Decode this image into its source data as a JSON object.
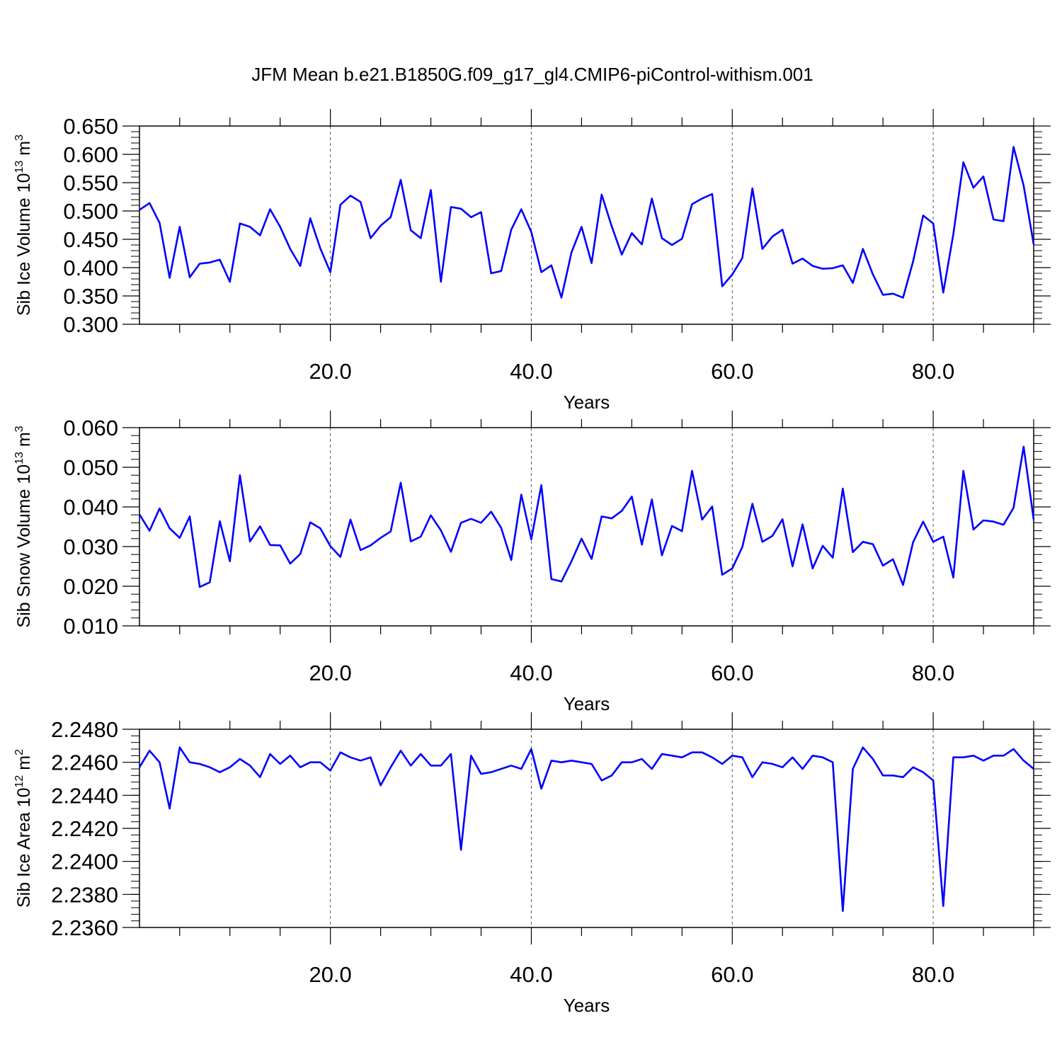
{
  "title": "JFM Mean b.e21.B1850G.f09_g17_gl4.CMIP6-piControl-withism.001",
  "colors": {
    "line": "#0000ff",
    "axis": "#000000",
    "grid": "#555555"
  },
  "chart_data": [
    {
      "type": "line",
      "xlabel": "Years",
      "ylabel": "Sib Ice Volume 10^13 m^3",
      "ylabel_parts": {
        "main": "Sib Ice Volume 10",
        "exp1": "13",
        "unit": " m",
        "exp2": "3"
      },
      "xlim": [
        1,
        90
      ],
      "ylim": [
        0.3,
        0.65
      ],
      "x_ticks": [
        20,
        40,
        60,
        80
      ],
      "x_tick_labels": [
        "20.0",
        "40.0",
        "60.0",
        "80.0"
      ],
      "y_ticks": [
        0.3,
        0.35,
        0.4,
        0.45,
        0.5,
        0.55,
        0.6,
        0.65
      ],
      "y_tick_labels": [
        "0.300",
        "0.350",
        "0.400",
        "0.450",
        "0.500",
        "0.550",
        "0.600",
        "0.650"
      ],
      "y_minor_step": 0.01,
      "grid": "vertical dashed at major x ticks",
      "series": [
        {
          "x_start": 1,
          "x_step": 1,
          "values": [
            0.502,
            0.514,
            0.479,
            0.382,
            0.472,
            0.383,
            0.407,
            0.409,
            0.414,
            0.375,
            0.478,
            0.472,
            0.457,
            0.503,
            0.472,
            0.433,
            0.403,
            0.487,
            0.434,
            0.392,
            0.511,
            0.527,
            0.516,
            0.452,
            0.474,
            0.489,
            0.555,
            0.466,
            0.452,
            0.537,
            0.375,
            0.507,
            0.504,
            0.489,
            0.498,
            0.39,
            0.394,
            0.467,
            0.503,
            0.463,
            0.392,
            0.404,
            0.347,
            0.427,
            0.472,
            0.408,
            0.529,
            0.473,
            0.423,
            0.461,
            0.441,
            0.522,
            0.452,
            0.44,
            0.451,
            0.512,
            0.522,
            0.53,
            0.367,
            0.388,
            0.417,
            0.54,
            0.433,
            0.455,
            0.467,
            0.407,
            0.416,
            0.403,
            0.398,
            0.399,
            0.404,
            0.373,
            0.433,
            0.388,
            0.352,
            0.354,
            0.347,
            0.411,
            0.492,
            0.478,
            0.356,
            0.459,
            0.586,
            0.541,
            0.561,
            0.485,
            0.482,
            0.613,
            0.545,
            0.441
          ]
        }
      ]
    },
    {
      "type": "line",
      "xlabel": "Years",
      "ylabel": "Sib Snow Volume 10^13 m^3",
      "ylabel_parts": {
        "main": "Sib Snow Volume 10",
        "exp1": "13",
        "unit": " m",
        "exp2": "3"
      },
      "xlim": [
        1,
        90
      ],
      "ylim": [
        0.01,
        0.06
      ],
      "x_ticks": [
        20,
        40,
        60,
        80
      ],
      "x_tick_labels": [
        "20.0",
        "40.0",
        "60.0",
        "80.0"
      ],
      "y_ticks": [
        0.01,
        0.02,
        0.03,
        0.04,
        0.05,
        0.06
      ],
      "y_tick_labels": [
        "0.010",
        "0.020",
        "0.030",
        "0.040",
        "0.050",
        "0.060"
      ],
      "y_minor_step": 0.002,
      "grid": "vertical dashed at major x ticks",
      "series": [
        {
          "x_start": 1,
          "x_step": 1,
          "values": [
            0.0381,
            0.034,
            0.0396,
            0.0346,
            0.0322,
            0.0376,
            0.0198,
            0.021,
            0.0364,
            0.0263,
            0.048,
            0.0313,
            0.0351,
            0.0304,
            0.0303,
            0.0257,
            0.0281,
            0.0361,
            0.0346,
            0.0301,
            0.0274,
            0.0368,
            0.0291,
            0.0303,
            0.0322,
            0.0338,
            0.0461,
            0.0313,
            0.0325,
            0.0379,
            0.0341,
            0.0287,
            0.036,
            0.037,
            0.036,
            0.0388,
            0.0347,
            0.0266,
            0.0431,
            0.0318,
            0.0455,
            0.0218,
            0.0212,
            0.0263,
            0.032,
            0.0269,
            0.0376,
            0.0371,
            0.039,
            0.0426,
            0.0305,
            0.0419,
            0.0278,
            0.0352,
            0.0339,
            0.0491,
            0.0368,
            0.0401,
            0.0229,
            0.0245,
            0.0299,
            0.0408,
            0.0312,
            0.0327,
            0.0369,
            0.025,
            0.0356,
            0.0245,
            0.0302,
            0.0272,
            0.0446,
            0.0286,
            0.0312,
            0.0306,
            0.0252,
            0.0268,
            0.0203,
            0.0311,
            0.0363,
            0.0312,
            0.0325,
            0.0222,
            0.0491,
            0.0343,
            0.0366,
            0.0363,
            0.0355,
            0.0398,
            0.0552,
            0.0368
          ]
        }
      ]
    },
    {
      "type": "line",
      "xlabel": "Years",
      "ylabel": "Sib Ice Area 10^12 m^2",
      "ylabel_parts": {
        "main": "Sib Ice Area 10",
        "exp1": "12",
        "unit": " m",
        "exp2": "2"
      },
      "xlim": [
        1,
        90
      ],
      "ylim": [
        2.236,
        2.248
      ],
      "x_ticks": [
        20,
        40,
        60,
        80
      ],
      "x_tick_labels": [
        "20.0",
        "40.0",
        "60.0",
        "80.0"
      ],
      "y_ticks": [
        2.236,
        2.238,
        2.24,
        2.242,
        2.244,
        2.246,
        2.248
      ],
      "y_tick_labels": [
        "2.2360",
        "2.2380",
        "2.2400",
        "2.2420",
        "2.2440",
        "2.2460",
        "2.2480"
      ],
      "y_minor_step": 0.0004,
      "grid": "vertical dashed at major x ticks",
      "series": [
        {
          "x_start": 1,
          "x_step": 1,
          "values": [
            2.2457,
            2.2467,
            2.246,
            2.2432,
            2.2469,
            2.246,
            2.2459,
            2.2457,
            2.2454,
            2.2457,
            2.2462,
            2.2458,
            2.2451,
            2.2465,
            2.2459,
            2.2464,
            2.2457,
            2.246,
            2.246,
            2.2455,
            2.2466,
            2.2463,
            2.2461,
            2.2463,
            2.2446,
            2.2457,
            2.2467,
            2.2458,
            2.2465,
            2.2458,
            2.2458,
            2.2465,
            2.2407,
            2.2464,
            2.2453,
            2.2454,
            2.2456,
            2.2458,
            2.2456,
            2.2468,
            2.2444,
            2.2461,
            2.246,
            2.2461,
            2.246,
            2.2459,
            2.2449,
            2.2452,
            2.246,
            2.246,
            2.2462,
            2.2456,
            2.2465,
            2.2464,
            2.2463,
            2.2466,
            2.2466,
            2.2463,
            2.2459,
            2.2464,
            2.2463,
            2.2451,
            2.246,
            2.2459,
            2.2457,
            2.2463,
            2.2456,
            2.2464,
            2.2463,
            2.246,
            2.237,
            2.2456,
            2.2469,
            2.2462,
            2.2452,
            2.2452,
            2.2451,
            2.2457,
            2.2454,
            2.2449,
            2.2373,
            2.2463,
            2.2463,
            2.2464,
            2.2461,
            2.2464,
            2.2464,
            2.2468,
            2.2461,
            2.2456
          ]
        }
      ]
    }
  ]
}
